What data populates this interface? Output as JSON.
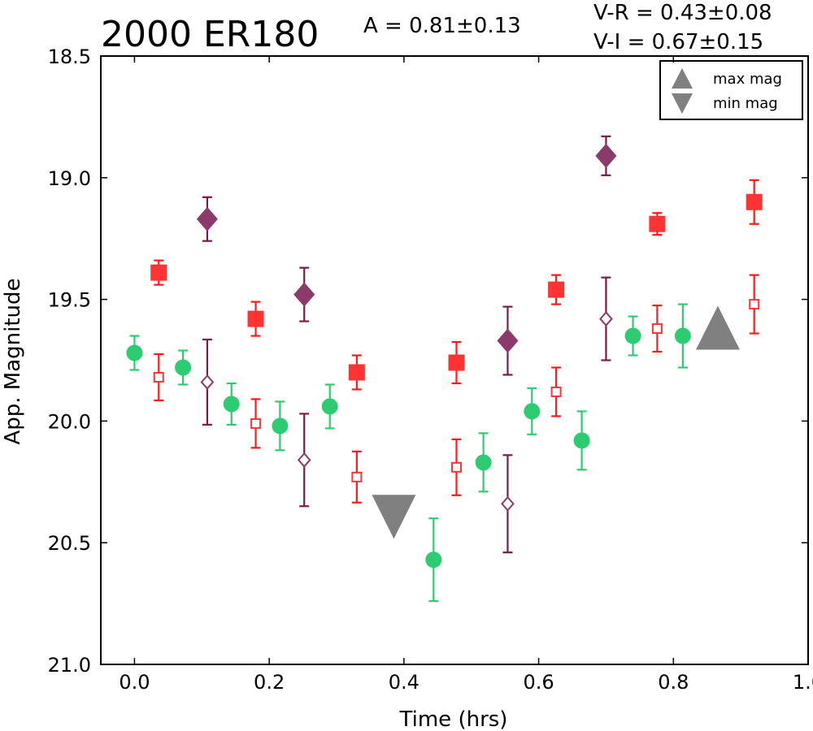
{
  "chart_data": {
    "type": "scatter",
    "title": "2000 ER180",
    "amplitude_text": "A  = 0.81±0.13",
    "color_text": [
      "V-R = 0.43±0.08",
      "V-I  = 0.67±0.15"
    ],
    "xlabel": "Time (hrs)",
    "ylabel": "App. Magnitude",
    "xlim": [
      -0.05,
      1.0
    ],
    "ylim": [
      21.0,
      18.5
    ],
    "y_inverted": true,
    "x_ticks": [
      "0.0",
      "0.2",
      "0.4",
      "0.6",
      "0.8",
      "1.0"
    ],
    "x_tick_values": [
      0.0,
      0.2,
      0.4,
      0.6,
      0.8,
      1.0
    ],
    "y_ticks": [
      "18.5",
      "19.0",
      "19.5",
      "20.0",
      "20.5",
      "21.0"
    ],
    "y_tick_values": [
      18.5,
      19.0,
      19.5,
      20.0,
      20.5,
      21.0
    ],
    "grid": false,
    "legend_position": "top-right",
    "legend": [
      {
        "label": "max mag",
        "marker": "triangle-up",
        "color": "#808080"
      },
      {
        "label": "min mag",
        "marker": "triangle-down",
        "color": "#808080"
      }
    ],
    "series": [
      {
        "marker": "circle",
        "color": "#2ecc71",
        "errcolor": "#2ecc71",
        "points": [
          {
            "x": 0.0,
            "y": 19.72,
            "err": 0.07
          },
          {
            "x": 0.072,
            "y": 19.78,
            "err": 0.07
          },
          {
            "x": 0.144,
            "y": 19.93,
            "err": 0.085
          },
          {
            "x": 0.216,
            "y": 20.02,
            "err": 0.1
          },
          {
            "x": 0.29,
            "y": 19.94,
            "err": 0.09
          },
          {
            "x": 0.444,
            "y": 20.57,
            "err": 0.17
          },
          {
            "x": 0.518,
            "y": 20.17,
            "err": 0.12
          },
          {
            "x": 0.59,
            "y": 19.96,
            "err": 0.095
          },
          {
            "x": 0.664,
            "y": 20.08,
            "err": 0.12
          },
          {
            "x": 0.74,
            "y": 19.65,
            "err": 0.08
          },
          {
            "x": 0.814,
            "y": 19.65,
            "err": 0.13
          }
        ]
      },
      {
        "marker": "square",
        "color": "#ff3333",
        "errcolor": "#ff1a1a",
        "points": [
          {
            "x": 0.036,
            "y": 19.39,
            "err": 0.05
          },
          {
            "x": 0.18,
            "y": 19.58,
            "err": 0.07
          },
          {
            "x": 0.33,
            "y": 19.8,
            "err": 0.07
          },
          {
            "x": 0.478,
            "y": 19.76,
            "err": 0.085
          },
          {
            "x": 0.626,
            "y": 19.46,
            "err": 0.06
          },
          {
            "x": 0.776,
            "y": 19.19,
            "err": 0.045
          },
          {
            "x": 0.92,
            "y": 19.1,
            "err": 0.09
          }
        ]
      },
      {
        "marker": "square-open",
        "color": "#ff3333",
        "errcolor": "#ff1a1a",
        "points": [
          {
            "x": 0.036,
            "y": 19.82,
            "err": 0.095
          },
          {
            "x": 0.18,
            "y": 20.01,
            "err": 0.1
          },
          {
            "x": 0.33,
            "y": 20.23,
            "err": 0.105
          },
          {
            "x": 0.478,
            "y": 20.19,
            "err": 0.115
          },
          {
            "x": 0.626,
            "y": 19.88,
            "err": 0.1
          },
          {
            "x": 0.776,
            "y": 19.62,
            "err": 0.095
          },
          {
            "x": 0.92,
            "y": 19.52,
            "err": 0.12
          }
        ]
      },
      {
        "marker": "diamond",
        "color": "#8b3a6b",
        "errcolor": "#7a1a4a",
        "points": [
          {
            "x": 0.108,
            "y": 19.17,
            "err": 0.09
          },
          {
            "x": 0.252,
            "y": 19.48,
            "err": 0.11
          },
          {
            "x": 0.554,
            "y": 19.67,
            "err": 0.14
          },
          {
            "x": 0.7,
            "y": 18.91,
            "err": 0.08
          }
        ]
      },
      {
        "marker": "diamond-open",
        "color": "#8b3a6b",
        "errcolor": "#7a1a4a",
        "points": [
          {
            "x": 0.108,
            "y": 19.84,
            "err": 0.175
          },
          {
            "x": 0.252,
            "y": 20.16,
            "err": 0.19
          },
          {
            "x": 0.554,
            "y": 20.34,
            "err": 0.2
          },
          {
            "x": 0.7,
            "y": 19.58,
            "err": 0.17
          }
        ]
      }
    ],
    "extrema": [
      {
        "label": "max mag",
        "marker": "triangle-up",
        "x": 0.866,
        "y": 19.62,
        "color": "#808080"
      },
      {
        "label": "min mag",
        "marker": "triangle-down",
        "x": 0.385,
        "y": 20.39,
        "color": "#808080"
      }
    ]
  }
}
